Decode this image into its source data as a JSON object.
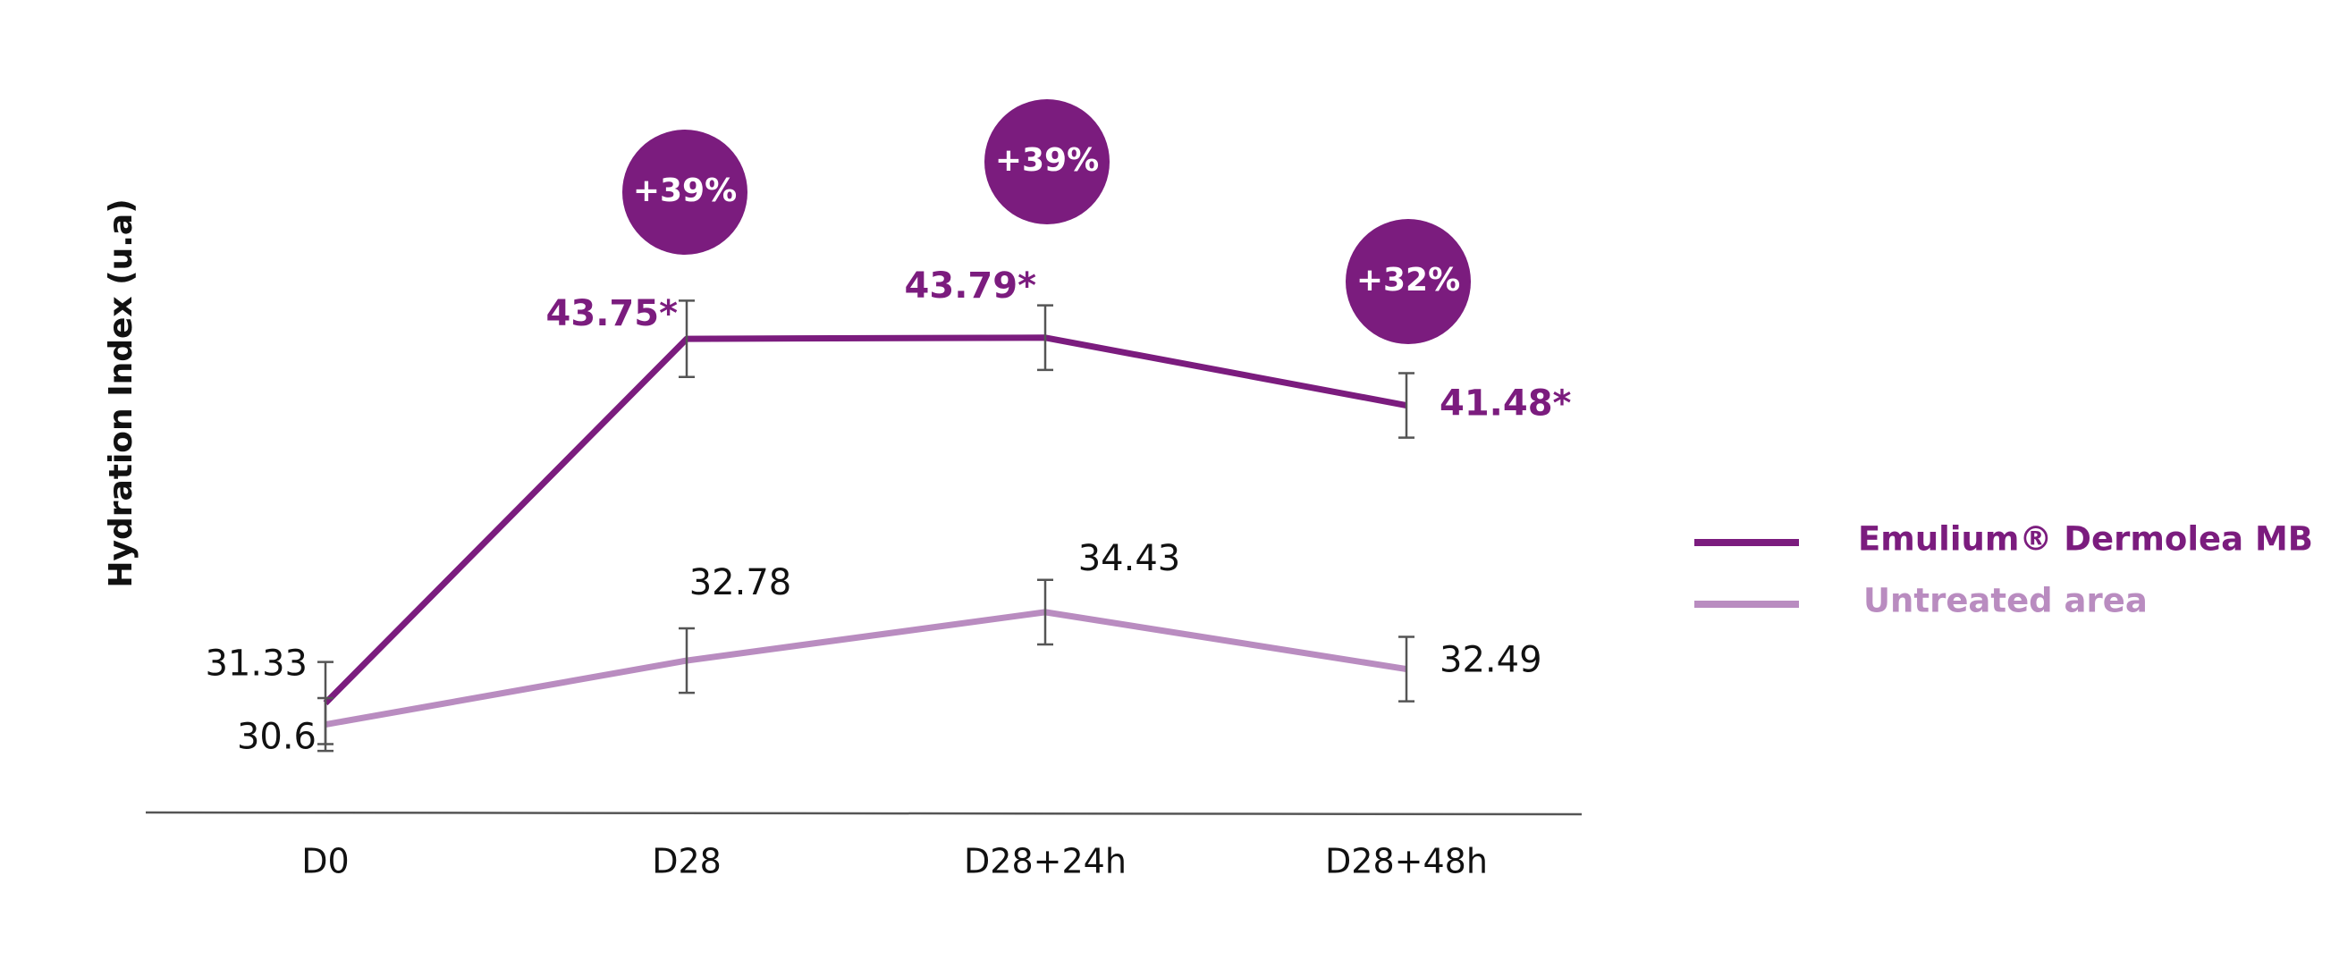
{
  "chart_data": {
    "type": "line",
    "y_label": "Hydration Index (u.a)",
    "categories": [
      "D0",
      "D28",
      "D28+24h",
      "D28+48h"
    ],
    "ylim": [
      27.6,
      50
    ],
    "series": [
      {
        "name": "Emulium® Dermolea MB",
        "color": "#7b1c7e",
        "values": [
          31.33,
          43.75,
          43.79,
          41.48
        ],
        "value_labels": [
          "31.33",
          "43.75*",
          "43.79*",
          "41.48*"
        ],
        "errors": [
          1.4,
          1.3,
          1.1,
          1.1
        ]
      },
      {
        "name": "Untreated area",
        "color": "#b98cc0",
        "values": [
          30.6,
          32.78,
          34.43,
          32.49
        ],
        "errors": [
          0.9,
          1.1,
          1.1,
          1.1
        ]
      }
    ],
    "annotations": [
      "+39%",
      "+39%",
      "+32%"
    ]
  }
}
